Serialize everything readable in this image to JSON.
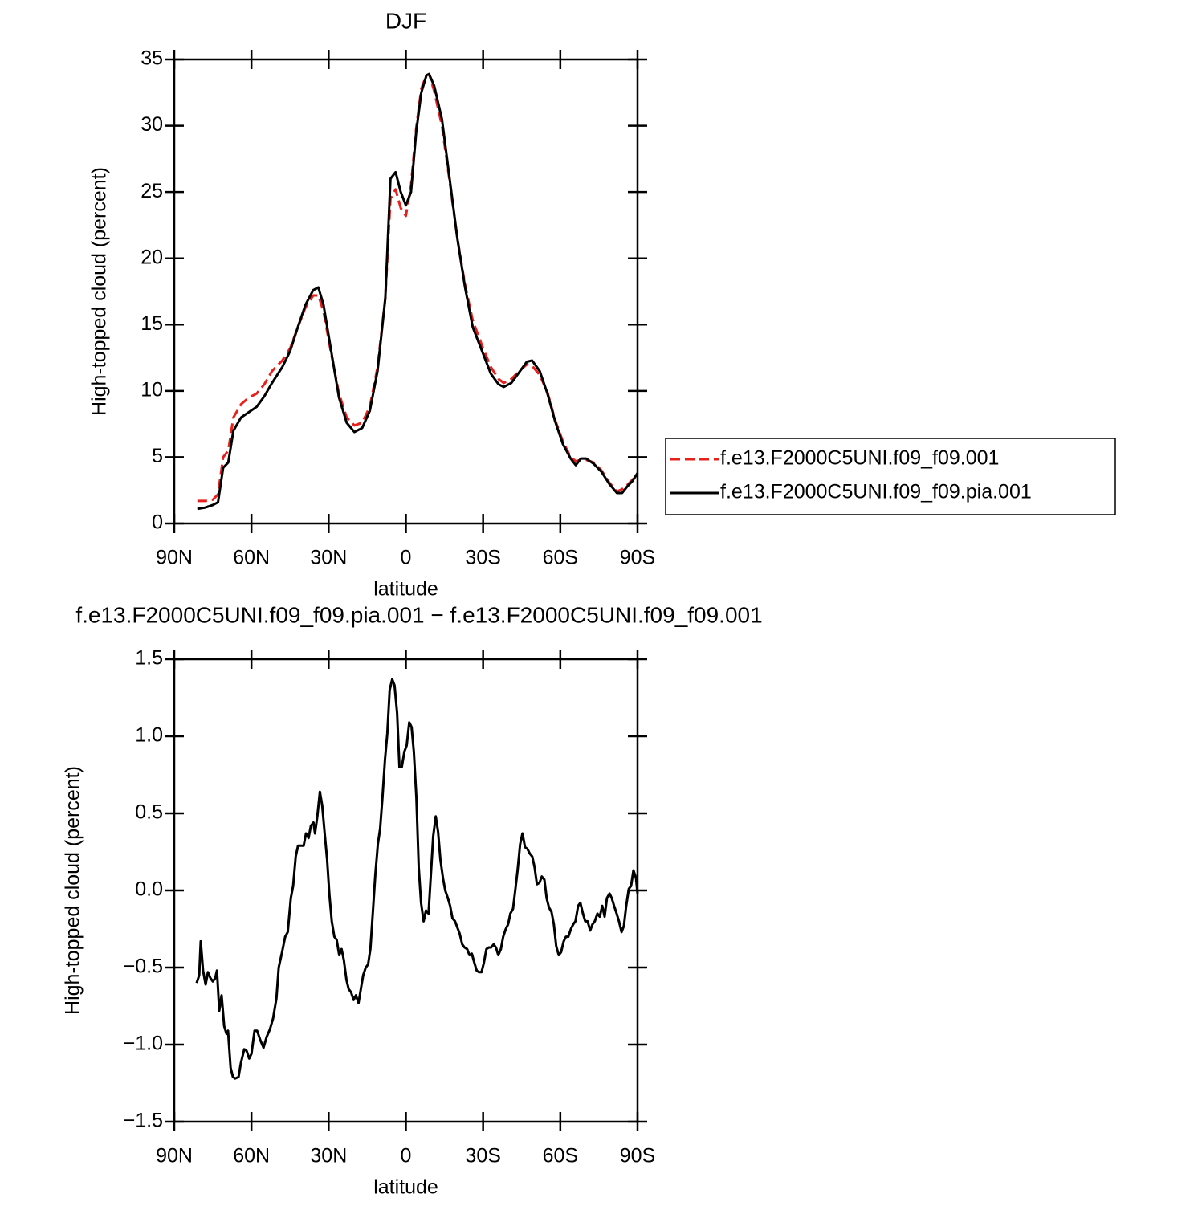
{
  "chart_data": [
    {
      "type": "line",
      "title": "DJF",
      "xlabel": "latitude",
      "ylabel": "High-topped cloud (percent)",
      "xlim": [
        90,
        -90
      ],
      "ylim": [
        0,
        35
      ],
      "xticks": [
        {
          "value": 90,
          "label": "90N"
        },
        {
          "value": 60,
          "label": "60N"
        },
        {
          "value": 30,
          "label": "30N"
        },
        0,
        {
          "value": -30,
          "label": "30S"
        },
        {
          "value": -60,
          "label": "60S"
        },
        {
          "value": -90,
          "label": "90S"
        }
      ],
      "yticks": [
        0,
        5,
        10,
        15,
        20,
        25,
        30,
        35
      ],
      "x": [
        81,
        78,
        75,
        73,
        71,
        69,
        67,
        64,
        61,
        58,
        55,
        52,
        48,
        45,
        42,
        39,
        36,
        34,
        32,
        29,
        26,
        23,
        20,
        17,
        14,
        11,
        8,
        6,
        4,
        2,
        0,
        -2,
        -4,
        -6,
        -8,
        -9,
        -11,
        -14,
        -17,
        -20,
        -23,
        -26,
        -30,
        -33,
        -36,
        -38,
        -41,
        -44,
        -47,
        -49,
        -52,
        -55,
        -58,
        -61,
        -64,
        -66,
        -68,
        -70,
        -73,
        -76,
        -79,
        -82,
        -84,
        -86,
        -88,
        -90
      ],
      "series": [
        {
          "name": "f.e13.F2000C5UNI.f09_f09.001",
          "color": "#e8201c",
          "dash": true,
          "values": [
            1.7,
            1.7,
            1.8,
            2.2,
            5.0,
            5.5,
            8.0,
            9.0,
            9.5,
            9.8,
            10.5,
            11.5,
            12.3,
            13.2,
            14.8,
            16.3,
            17.2,
            17.2,
            16.0,
            12.8,
            9.8,
            8.0,
            7.4,
            7.6,
            8.8,
            11.8,
            17.0,
            24.5,
            25.2,
            23.8,
            23.2,
            25.5,
            29.8,
            32.8,
            33.8,
            33.9,
            32.6,
            30.0,
            25.8,
            21.5,
            18.0,
            15.3,
            13.2,
            11.8,
            10.9,
            10.6,
            10.9,
            11.5,
            12.0,
            11.9,
            11.2,
            9.9,
            7.8,
            6.2,
            5.0,
            4.7,
            4.8,
            4.8,
            4.6,
            4.0,
            3.1,
            2.4,
            2.6,
            2.9,
            3.3,
            3.7
          ]
        },
        {
          "name": "f.e13.F2000C5UNI.f09_f09.pia.001",
          "color": "#000000",
          "dash": false,
          "values": [
            1.1,
            1.2,
            1.4,
            1.6,
            4.2,
            4.6,
            7.0,
            8.0,
            8.4,
            8.8,
            9.6,
            10.6,
            11.8,
            13.0,
            14.8,
            16.5,
            17.6,
            17.8,
            16.5,
            13.0,
            9.5,
            7.6,
            6.9,
            7.2,
            8.5,
            11.5,
            17.0,
            26.0,
            26.5,
            25.0,
            24.0,
            25.0,
            29.5,
            32.5,
            33.8,
            33.9,
            33.0,
            30.5,
            26.0,
            21.5,
            17.8,
            14.8,
            12.8,
            11.3,
            10.5,
            10.3,
            10.6,
            11.4,
            12.2,
            12.3,
            11.5,
            9.8,
            7.7,
            6.0,
            4.9,
            4.4,
            4.9,
            4.9,
            4.5,
            3.9,
            3.0,
            2.3,
            2.3,
            2.8,
            3.2,
            3.8
          ]
        }
      ]
    },
    {
      "type": "line",
      "title": "f.e13.F2000C5UNI.f09_f09.pia.001 − f.e13.F2000C5UNI.f09_f09.001",
      "xlabel": "latitude",
      "ylabel": "High-topped cloud (percent)",
      "xlim": [
        90,
        -90
      ],
      "ylim": [
        -1.5,
        1.5
      ],
      "xticks": [
        {
          "value": 90,
          "label": "90N"
        },
        {
          "value": 60,
          "label": "60N"
        },
        {
          "value": 30,
          "label": "30N"
        },
        0,
        {
          "value": -30,
          "label": "30S"
        },
        {
          "value": -60,
          "label": "60S"
        },
        {
          "value": -90,
          "label": "90S"
        }
      ],
      "yticks": [
        {
          "value": -1.5,
          "label": "−1.5"
        },
        {
          "value": -1,
          "label": "−1.0"
        },
        {
          "value": -0.5,
          "label": "−0.5"
        },
        {
          "value": 0,
          "label": "0.0"
        },
        0.5,
        {
          "value": 1,
          "label": "1.0"
        },
        1.5
      ],
      "x": [
        81.3,
        80.3,
        79.7,
        78.8,
        77.8,
        76.9,
        75.9,
        75,
        74.1,
        73.4,
        72.5,
        71.6,
        70.6,
        69.7,
        69.1,
        68.1,
        67.2,
        66.3,
        65,
        64.1,
        62.8,
        61.9,
        60.9,
        60,
        58.8,
        57.8,
        56.6,
        55.3,
        54.1,
        52.8,
        51.6,
        50.3,
        49.4,
        48.1,
        46.9,
        45.9,
        44.7,
        43.8,
        42.8,
        41.9,
        40.6,
        39.7,
        38.8,
        37.8,
        36.9,
        35.9,
        35.3,
        34.4,
        33.4,
        32.5,
        31.6,
        30.6,
        29.7,
        28.8,
        27.8,
        26.9,
        25.9,
        25,
        24.1,
        23.1,
        22.2,
        21.3,
        20.3,
        19.4,
        18.4,
        17.5,
        16.6,
        15.6,
        14.7,
        13.8,
        12.8,
        11.9,
        10.9,
        10,
        9.1,
        8.1,
        7.2,
        6.3,
        5.3,
        4.4,
        3.4,
        2.5,
        1.6,
        0.6,
        -0.3,
        -1.3,
        -2.2,
        -3.1,
        -4.1,
        -5,
        -5.9,
        -6.9,
        -7.8,
        -8.8,
        -9.7,
        -10.6,
        -11.6,
        -12.5,
        -13.4,
        -14.4,
        -15.3,
        -16.3,
        -17.2,
        -18.1,
        -19.1,
        -20,
        -20.9,
        -21.9,
        -22.8,
        -23.8,
        -24.7,
        -25.6,
        -26.6,
        -27.5,
        -28.4,
        -29.4,
        -30.3,
        -31.3,
        -32.2,
        -33.1,
        -34.1,
        -35,
        -35.9,
        -36.9,
        -37.8,
        -38.8,
        -39.7,
        -40.6,
        -41.6,
        -42.5,
        -43.4,
        -44.4,
        -45.3,
        -46.3,
        -47.2,
        -48.1,
        -49.1,
        -50,
        -50.9,
        -51.9,
        -52.8,
        -53.8,
        -54.7,
        -55.6,
        -56.6,
        -57.5,
        -58.4,
        -59.4,
        -60.3,
        -61.3,
        -62.2,
        -63.1,
        -64.1,
        -65,
        -65.9,
        -66.9,
        -67.8,
        -68.8,
        -69.7,
        -70.6,
        -71.6,
        -72.5,
        -73.4,
        -74.4,
        -75.3,
        -76.3,
        -77.2,
        -78.1,
        -79.1,
        -80,
        -80.9,
        -81.9,
        -82.8,
        -83.8,
        -84.7,
        -85.6,
        -86.6,
        -87.5,
        -88.4,
        -89.4,
        -90
      ],
      "series": [
        {
          "color": "#000000",
          "dash": false,
          "values": [
            -0.6,
            -0.55,
            -0.33,
            -0.52,
            -0.61,
            -0.53,
            -0.57,
            -0.59,
            -0.57,
            -0.52,
            -0.78,
            -0.68,
            -0.88,
            -0.93,
            -0.91,
            -1.15,
            -1.21,
            -1.22,
            -1.21,
            -1.12,
            -1.03,
            -1.04,
            -1.09,
            -1.06,
            -0.91,
            -0.91,
            -0.97,
            -1.02,
            -0.95,
            -0.9,
            -0.83,
            -0.7,
            -0.5,
            -0.4,
            -0.3,
            -0.27,
            -0.05,
            0.03,
            0.22,
            0.29,
            0.29,
            0.29,
            0.37,
            0.34,
            0.42,
            0.44,
            0.37,
            0.48,
            0.64,
            0.55,
            0.38,
            0.2,
            -0.03,
            -0.2,
            -0.3,
            -0.32,
            -0.42,
            -0.38,
            -0.45,
            -0.58,
            -0.64,
            -0.66,
            -0.71,
            -0.68,
            -0.73,
            -0.64,
            -0.55,
            -0.5,
            -0.48,
            -0.38,
            -0.13,
            0.1,
            0.3,
            0.4,
            0.6,
            0.85,
            1.02,
            1.3,
            1.37,
            1.33,
            1.15,
            0.8,
            0.8,
            0.9,
            0.94,
            1.09,
            1.06,
            0.9,
            0.6,
            0.15,
            -0.08,
            -0.2,
            -0.13,
            -0.15,
            0.1,
            0.35,
            0.48,
            0.38,
            0.2,
            0.08,
            0,
            -0.05,
            -0.1,
            -0.18,
            -0.2,
            -0.24,
            -0.28,
            -0.35,
            -0.37,
            -0.38,
            -0.42,
            -0.41,
            -0.47,
            -0.52,
            -0.53,
            -0.53,
            -0.47,
            -0.38,
            -0.37,
            -0.37,
            -0.35,
            -0.37,
            -0.42,
            -0.38,
            -0.3,
            -0.25,
            -0.22,
            -0.15,
            -0.12,
            0,
            0.13,
            0.3,
            0.37,
            0.28,
            0.27,
            0.24,
            0.22,
            0.15,
            0.04,
            0.05,
            0.09,
            0.07,
            -0.05,
            -0.11,
            -0.14,
            -0.22,
            -0.36,
            -0.42,
            -0.4,
            -0.33,
            -0.3,
            -0.3,
            -0.25,
            -0.22,
            -0.2,
            -0.1,
            -0.08,
            -0.15,
            -0.2,
            -0.2,
            -0.26,
            -0.22,
            -0.2,
            -0.15,
            -0.17,
            -0.1,
            -0.17,
            -0.05,
            -0.02,
            -0.05,
            -0.1,
            -0.15,
            -0.2,
            -0.27,
            -0.23,
            -0.1,
            0.01,
            0.03,
            0.13,
            0.08,
            -0.02
          ]
        }
      ]
    }
  ]
}
